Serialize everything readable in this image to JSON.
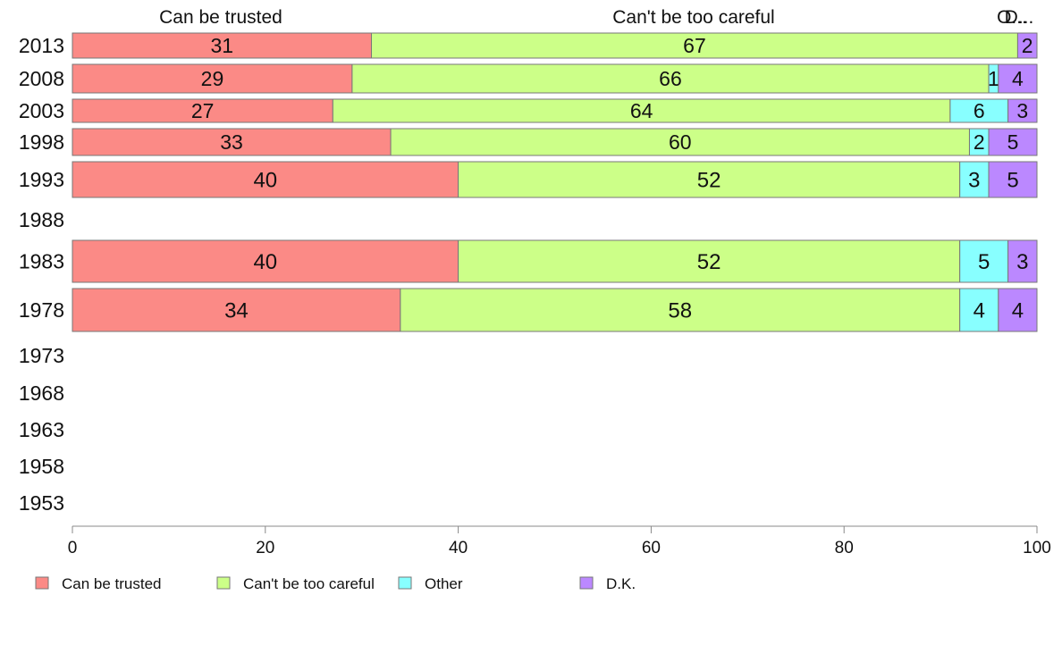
{
  "chart_data": {
    "type": "bar",
    "orientation": "horizontal",
    "stacked": true,
    "title": "",
    "xlabel": "",
    "ylabel": "",
    "xlim": [
      0,
      100
    ],
    "x_ticks": [
      "0",
      "20",
      "40",
      "60",
      "80",
      "100"
    ],
    "categories": [
      "2013",
      "2008",
      "2003",
      "1998",
      "1993",
      "1988",
      "1983",
      "1978",
      "1973",
      "1968",
      "1963",
      "1958",
      "1953"
    ],
    "series": [
      {
        "name": "Can be trusted",
        "color": "#fb8a86",
        "values": [
          31,
          29,
          27,
          33,
          40,
          null,
          40,
          34,
          null,
          null,
          null,
          null,
          null
        ]
      },
      {
        "name": "Can't be too careful",
        "color": "#ccff88",
        "values": [
          67,
          66,
          64,
          60,
          52,
          null,
          52,
          58,
          null,
          null,
          null,
          null,
          null
        ]
      },
      {
        "name": "Other",
        "color": "#88ffff",
        "values": [
          0,
          1,
          6,
          2,
          3,
          null,
          5,
          4,
          null,
          null,
          null,
          null,
          null
        ]
      },
      {
        "name": "D.K.",
        "color": "#bb88ff",
        "values": [
          2,
          4,
          3,
          5,
          5,
          null,
          3,
          4,
          null,
          null,
          null,
          null,
          null
        ]
      }
    ],
    "top_labels": [
      "Can be trusted",
      "Can't be too careful",
      "O...",
      "D..."
    ],
    "legend": {
      "position": "bottom-left",
      "entries": [
        "Can be trusted",
        "Can't be too careful",
        "Other",
        "D.K."
      ]
    },
    "grid": false
  }
}
